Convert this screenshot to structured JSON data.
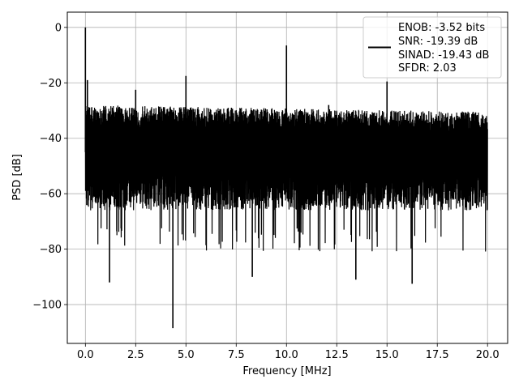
{
  "chart_data": {
    "type": "line",
    "title": "",
    "xlabel": "Frequency [MHz]",
    "ylabel": "PSD [dB]",
    "xlim": [
      -0.9,
      21.0
    ],
    "ylim": [
      -114,
      5.5
    ],
    "xticks": [
      0.0,
      2.5,
      5.0,
      7.5,
      10.0,
      12.5,
      15.0,
      17.5,
      20.0
    ],
    "xtick_labels": [
      "0.0",
      "2.5",
      "5.0",
      "7.5",
      "10.0",
      "12.5",
      "15.0",
      "17.5",
      "20.0"
    ],
    "yticks": [
      0,
      -20,
      -40,
      -60,
      -80,
      -100
    ],
    "ytick_labels": [
      "0",
      "−20",
      "−40",
      "−60",
      "−80",
      "−100"
    ],
    "grid": true,
    "legend_position": "top-right",
    "legend_entries": [
      "ENOB: -3.52 bits",
      "SNR: -19.39 dB",
      "SINAD: -19.43 dB",
      "SFDR: 2.03"
    ],
    "line_color": "#000000",
    "x_range": [
      0,
      20
    ],
    "noise_floor_range": [
      -70,
      -27
    ],
    "spikes": [
      {
        "x": 0.0,
        "y": 0
      },
      {
        "x": 0.1,
        "y": -19
      },
      {
        "x": 2.5,
        "y": -22.5
      },
      {
        "x": 5.0,
        "y": -17.5
      },
      {
        "x": 10.0,
        "y": -6.5
      },
      {
        "x": 12.1,
        "y": -28
      },
      {
        "x": 15.0,
        "y": -19.5
      }
    ],
    "dips": [
      {
        "x": 1.2,
        "y": -92
      },
      {
        "x": 4.35,
        "y": -108.5
      },
      {
        "x": 8.3,
        "y": -90
      },
      {
        "x": 13.45,
        "y": -91
      },
      {
        "x": 16.25,
        "y": -92.5
      }
    ]
  }
}
